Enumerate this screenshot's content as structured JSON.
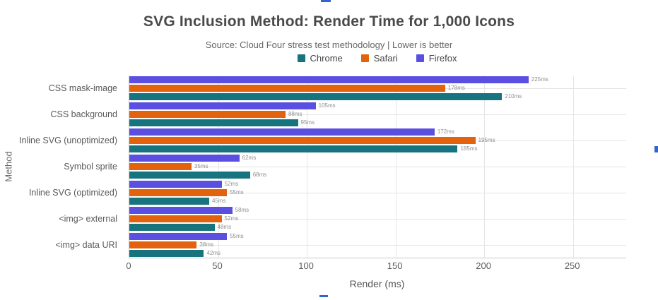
{
  "page": {
    "background": "#FFFFFF",
    "artifact_color": "#3366CC"
  },
  "chart_data": {
    "type": "bar",
    "orientation": "horizontal",
    "title": "SVG Inclusion Method: Render Time for 1,000 Icons",
    "subtitle": "Source: Cloud Four stress test methodology | Lower is better",
    "xlabel": "Render (ms)",
    "ylabel": "Method",
    "categories": [
      "CSS mask-image",
      "CSS background",
      "Inline SVG (unoptimized)",
      "Symbol sprite",
      "Inline SVG (optimized)",
      "<img> external",
      "<img> data URI"
    ],
    "series": [
      {
        "name": "Chrome",
        "color": "#17747E",
        "values": [
          210,
          95,
          185,
          68,
          45,
          48,
          42
        ]
      },
      {
        "name": "Safari",
        "color": "#E2620D",
        "values": [
          178,
          88,
          195,
          35,
          55,
          52,
          38
        ]
      },
      {
        "name": "Firefox",
        "color": "#5A4FE0",
        "values": [
          225,
          105,
          172,
          62,
          52,
          58,
          55
        ]
      }
    ],
    "bar_order_top_to_bottom": [
      "Firefox",
      "Safari",
      "Chrome"
    ],
    "value_label_suffix": "ms",
    "x_ticks": [
      0,
      50,
      100,
      150,
      200,
      250
    ],
    "xlim": [
      0,
      280
    ],
    "grid": "vertical tick gridlines + horizontal category centerlines",
    "legend_position": "top-center"
  }
}
